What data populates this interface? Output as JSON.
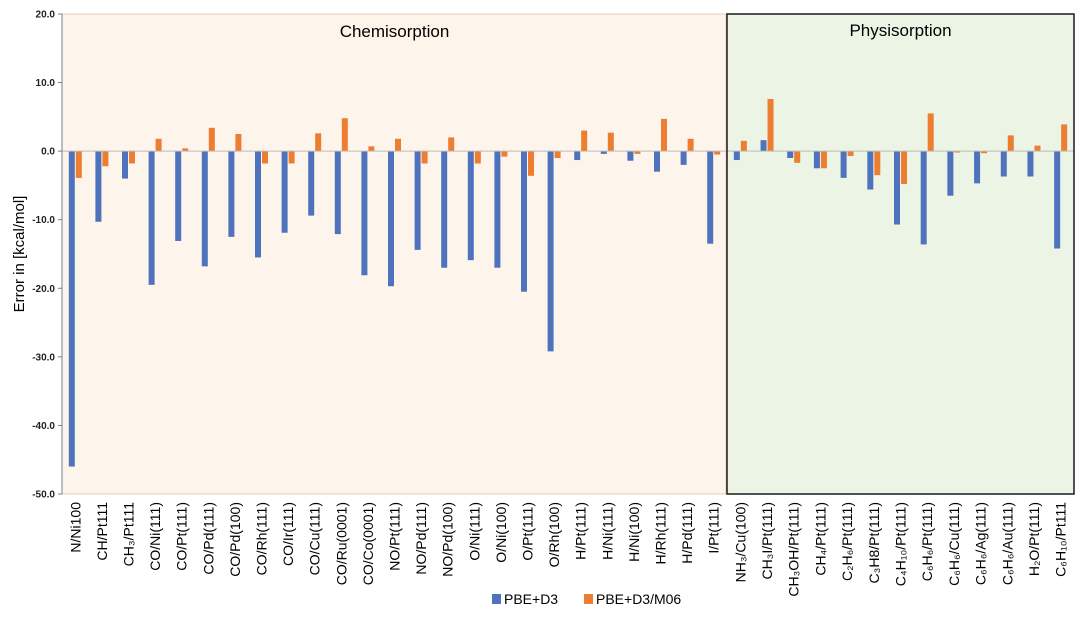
{
  "chart_data": {
    "type": "bar",
    "title": "",
    "xlabel": "",
    "ylabel": "Error in [kcal/mol]",
    "ylim": [
      -50,
      20
    ],
    "yticks": [
      "20.0",
      "10.0",
      "0.0",
      "-10.0",
      "-20.0",
      "-30.0",
      "-40.0",
      "-50.0"
    ],
    "grid": false,
    "legend_position": "bottom-center",
    "regions": [
      {
        "label": "Chemisorption",
        "start_index": 0,
        "end_index": 25,
        "fill": "#fdf4eb"
      },
      {
        "label": "Physisorption",
        "start_index": 26,
        "end_index": 39,
        "fill": "#ecf4e6"
      }
    ],
    "categories": [
      "N/Ni100",
      "CH/Pt111",
      "CH₃/Pt111",
      "CO/Ni(111)",
      "CO/Pt(111)",
      "CO/Pd(111)",
      "CO/Pd(100)",
      "CO/Rh(111)",
      "CO/Ir(111)",
      "CO/Cu(111)",
      "CO/Ru(0001)",
      "CO/Co(0001)",
      "NO/Pt(111)",
      "NO/Pd(111)",
      "NO/Pd(100)",
      "O/Ni(111)",
      "O/Ni(100)",
      "O/Pt(111)",
      "O/Rh(100)",
      "H/Pt(111)",
      "H/Ni(111)",
      "H/Ni(100)",
      "H/Rh(111)",
      "H/Pd(111)",
      "I/Pt(111)",
      "NH₃/Cu(100)",
      "CH₃I/Pt(111)",
      "CH₃OH/Pt(111)",
      "CH₄/Pt(111)",
      "C₂H₆/Pt(111)",
      "C₃H8/Pt(111)",
      "C₄H₁₀/Pt(111)",
      "C₆H₆/Pt(111)",
      "C₆H₆/Cu(111)",
      "C₆H₆/Ag(111)",
      "C₆H₆/Au(111)",
      "H₂O/Pt(111)",
      "C₆H₁₀/Pt111"
    ],
    "series": [
      {
        "name": "PBE+D3",
        "color": "#4f72bd",
        "values": [
          -46.0,
          -10.3,
          -4.0,
          -19.5,
          -13.1,
          -16.8,
          -12.5,
          -15.5,
          -11.9,
          -9.4,
          -12.1,
          -18.1,
          -19.7,
          -14.4,
          -17.0,
          -15.9,
          -17.0,
          -20.5,
          -29.2,
          -1.3,
          -0.4,
          -1.4,
          -3.0,
          -2.0,
          -13.5,
          -1.3,
          1.6,
          -1.0,
          -2.5,
          -3.9,
          -5.6,
          -10.7,
          -13.6,
          -6.5,
          -4.7,
          -3.7,
          -3.7,
          -14.2
        ]
      },
      {
        "name": "PBE+D3/M06",
        "color": "#ed7d31",
        "values": [
          -3.9,
          -2.2,
          -1.8,
          1.8,
          0.4,
          3.4,
          2.5,
          -1.8,
          -1.8,
          2.6,
          4.8,
          0.7,
          1.8,
          -1.8,
          2.0,
          -1.8,
          -0.8,
          -3.6,
          -1.0,
          3.0,
          2.7,
          -0.4,
          4.7,
          1.8,
          -0.5,
          1.5,
          7.6,
          -1.7,
          -2.5,
          -0.7,
          -3.5,
          -4.8,
          5.5,
          -0.2,
          -0.3,
          2.3,
          0.8,
          3.9
        ]
      }
    ]
  }
}
